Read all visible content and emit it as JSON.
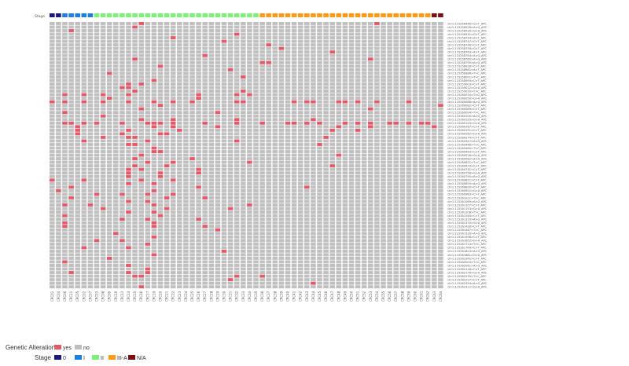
{
  "colors": {
    "yes": "#e05a6a",
    "no": "#c0bfbf",
    "stage_0": "#1a1a7a",
    "stage_I": "#1e7fdc",
    "stage_II": "#7ef07a",
    "stage_IIIA": "#ff9a1a",
    "stage_NA": "#7a0f14"
  },
  "chart_data": {
    "type": "heatmap",
    "stage_track_label": "Stage",
    "samples": [
      "CRC01",
      "CRC04",
      "CRC06",
      "CRC11",
      "CRC05",
      "CRC02",
      "CRC07",
      "CRC03",
      "CRC08",
      "CRC09",
      "CRC10",
      "CRC13",
      "CRC14",
      "CRC15",
      "CRC16",
      "CRC17",
      "CRC19",
      "CRC20",
      "CRC21",
      "CRC22",
      "CRC23",
      "CRC24",
      "CRC25",
      "CRC26",
      "CRC27",
      "CRC28",
      "CRC29",
      "CRC30",
      "CRC31",
      "CRC32",
      "CRC33",
      "CRC34",
      "CRC35",
      "CRC36",
      "CRC37",
      "CRC38",
      "CRC39",
      "CRC40",
      "CRC41",
      "CRC42",
      "CRC43",
      "CRC44",
      "CRC45",
      "CRC46",
      "CRC47",
      "CRC48",
      "CRC49",
      "CRC50",
      "CRC51",
      "CRC52",
      "CRC53",
      "CRC54",
      "CRC55",
      "CRC56",
      "CRC57",
      "CRC58",
      "CRC59",
      "CRC60",
      "CRC61",
      "CRC62",
      "CRC63",
      "CRC64"
    ],
    "stages": [
      "0",
      "0",
      "I",
      "I",
      "I",
      "I",
      "I",
      "II",
      "II",
      "II",
      "II",
      "II",
      "II",
      "II",
      "II",
      "II",
      "II",
      "II",
      "II",
      "II",
      "II",
      "II",
      "II",
      "II",
      "II",
      "II",
      "II",
      "II",
      "II",
      "II",
      "II",
      "II",
      "II",
      "III-A",
      "III-A",
      "III-A",
      "III-A",
      "III-A",
      "III-A",
      "III-A",
      "III-A",
      "III-A",
      "III-A",
      "III-A",
      "III-A",
      "III-A",
      "III-A",
      "III-A",
      "III-A",
      "III-A",
      "III-A",
      "III-A",
      "III-A",
      "III-A",
      "III-A",
      "III-A",
      "III-A",
      "III-A",
      "III-A",
      "III-A",
      "N/A",
      "N/A"
    ],
    "mutations": [
      "chr1:115256446>G>T_APC",
      "chr1:115256528>A>G_APC",
      "chr1:115256530>G>A_APC",
      "chr1:115256531>G>T_APC",
      "chr1:115258744>A>T_APC",
      "chr1:115258747>C>T_APC",
      "chr1:115258748>C>T_APC",
      "chr1:115258756>G>T_APC",
      "chr1:115258763>A>T_APC",
      "chr1:115258764>A>G_APC",
      "chr1:115258765>A>G_APC",
      "chr1:115258790>A>G_APC",
      "chr1:115258918>C>T_APC",
      "chr1:115258982>A>T_APC",
      "chr1:115258986>T>C_APC",
      "chr1:115258991>T>C_APC",
      "chr1:115258993>C>T_APC",
      "chr1:115259003>C>T_APC",
      "chr1:115259012>G>A_APC",
      "chr1:115259033>T>C_APC",
      "chr1:115260034>T>G_APC",
      "chr1:115260050>G>A_APC",
      "chr1:115260068>A>G_APC",
      "chr1:115260082>C>T_APC",
      "chr1:115260089>C>T_APC",
      "chr1:115260094>T>C_APC",
      "chr1:115260100>A>G_APC",
      "chr1:115260129>G>A_APC",
      "chr1:115260143>G>A_APC",
      "chr1:115260167>C>T_APC",
      "chr1:115260191>C>T_APC",
      "chr1:115260262>G>A_APC",
      "chr1:115260274>C>T_APC",
      "chr1:115260347>A>G_APC",
      "chr1:115260448>T>C_APC",
      "chr1:115260460>T>C_APC",
      "chr1:115260483>C>T_APC",
      "chr1:115260526>G>A_APC",
      "chr1:115260562>A>G_APC",
      "chr1:115260621>T>C_APC",
      "chr1:115260674>C>T_APC",
      "chr1:115260731>C>T_APC",
      "chr1:115260756>G>A_APC",
      "chr1:115260795>A>G_APC",
      "chr1:115260821>C>T_APC",
      "chr1:115260859>A>G_APC",
      "chr1:115260890>C>T_APC",
      "chr1:115260952>G>A_APC",
      "chr1:115260983>C>T_APC",
      "chr1:115261021>T>C_APC",
      "chr1:115261069>A>G_APC",
      "chr1:115261107>C>T_APC",
      "chr1:115261153>G>A_APC",
      "chr1:115261208>T>C_APC",
      "chr1:115261264>C>T_APC",
      "chr1:115261319>A>G_APC",
      "chr1:115261370>G>A_APC",
      "chr1:115261428>C>T_APC",
      "chr1:115261487>T>C_APC",
      "chr1:115261539>A>G_APC",
      "chr1:115261598>C>T_APC",
      "chr1:115261652>G>A_APC",
      "chr1:115261714>T>C_APC",
      "chr1:115261769>C>T_APC",
      "chr1:115261823>A>G_APC",
      "chr1:115261881>G>A_APC",
      "chr1:115261942>C>T_APC",
      "chr1:115262003>T>C_APC",
      "chr1:115262061>A>G_APC",
      "chr1:115262118>C>T_APC",
      "chr1:115262176>G>A_APC",
      "chr1:115262235>T>C_APC",
      "chr1:115262297>C>T_APC",
      "chr1:115262354>A>G_APC",
      "chr1:115262412>G>A_APC"
    ],
    "mutated": [
      [
        0,
        14
      ],
      [
        0,
        51
      ],
      [
        1,
        13
      ],
      [
        2,
        3
      ],
      [
        3,
        29
      ],
      [
        4,
        19
      ],
      [
        5,
        27
      ],
      [
        6,
        34
      ],
      [
        7,
        36
      ],
      [
        8,
        44
      ],
      [
        9,
        24
      ],
      [
        10,
        13
      ],
      [
        10,
        50
      ],
      [
        11,
        34
      ],
      [
        11,
        33
      ],
      [
        12,
        17
      ],
      [
        13,
        28
      ],
      [
        14,
        9
      ],
      [
        15,
        30
      ],
      [
        16,
        16
      ],
      [
        17,
        12
      ],
      [
        17,
        14
      ],
      [
        18,
        11
      ],
      [
        18,
        12
      ],
      [
        19,
        13
      ],
      [
        19,
        30
      ],
      [
        20,
        2
      ],
      [
        20,
        5
      ],
      [
        20,
        8
      ],
      [
        20,
        12
      ],
      [
        20,
        23
      ],
      [
        20,
        29
      ],
      [
        20,
        31
      ],
      [
        21,
        9
      ],
      [
        21,
        23
      ],
      [
        22,
        0
      ],
      [
        22,
        2
      ],
      [
        22,
        5
      ],
      [
        22,
        8
      ],
      [
        22,
        12
      ],
      [
        22,
        16
      ],
      [
        22,
        19
      ],
      [
        22,
        22
      ],
      [
        22,
        29
      ],
      [
        22,
        30
      ],
      [
        22,
        38
      ],
      [
        22,
        40
      ],
      [
        22,
        41
      ],
      [
        22,
        45
      ],
      [
        22,
        46
      ],
      [
        22,
        48
      ],
      [
        22,
        51
      ],
      [
        22,
        56
      ],
      [
        23,
        17
      ],
      [
        23,
        61
      ],
      [
        24,
        14
      ],
      [
        24,
        50
      ],
      [
        25,
        2
      ],
      [
        25,
        26
      ],
      [
        26,
        8
      ],
      [
        27,
        14
      ],
      [
        27,
        19
      ],
      [
        27,
        29
      ],
      [
        27,
        41
      ],
      [
        28,
        2
      ],
      [
        28,
        3
      ],
      [
        28,
        5
      ],
      [
        28,
        7
      ],
      [
        28,
        11
      ],
      [
        28,
        15
      ],
      [
        28,
        16
      ],
      [
        28,
        17
      ],
      [
        28,
        19
      ],
      [
        28,
        24
      ],
      [
        28,
        29
      ],
      [
        28,
        33
      ],
      [
        28,
        37
      ],
      [
        28,
        38
      ],
      [
        28,
        40
      ],
      [
        28,
        42
      ],
      [
        28,
        46
      ],
      [
        28,
        48
      ],
      [
        28,
        50
      ],
      [
        28,
        53
      ],
      [
        28,
        54
      ],
      [
        28,
        56
      ],
      [
        28,
        58
      ],
      [
        28,
        59
      ],
      [
        29,
        4
      ],
      [
        29,
        16
      ],
      [
        29,
        19
      ],
      [
        29,
        26
      ],
      [
        29,
        45
      ],
      [
        29,
        50
      ],
      [
        29,
        60
      ],
      [
        30,
        4
      ],
      [
        30,
        12
      ],
      [
        30,
        20
      ],
      [
        30,
        44
      ],
      [
        30,
        48
      ],
      [
        31,
        4
      ],
      [
        31,
        11
      ],
      [
        31,
        17
      ],
      [
        31,
        18
      ],
      [
        32,
        8
      ],
      [
        32,
        12
      ],
      [
        32,
        13
      ],
      [
        32,
        43
      ],
      [
        33,
        5
      ],
      [
        33,
        15
      ],
      [
        33,
        29
      ],
      [
        34,
        12
      ],
      [
        34,
        13
      ],
      [
        34,
        42
      ],
      [
        35,
        16
      ],
      [
        36,
        16
      ],
      [
        36,
        17
      ],
      [
        37,
        14
      ],
      [
        37,
        45
      ],
      [
        38,
        13
      ],
      [
        38,
        22
      ],
      [
        39,
        15
      ],
      [
        39,
        19
      ],
      [
        39,
        31
      ],
      [
        40,
        13
      ],
      [
        40,
        18
      ],
      [
        40,
        44
      ],
      [
        41,
        12
      ],
      [
        41,
        14
      ],
      [
        41,
        23
      ],
      [
        42,
        12
      ],
      [
        42,
        17
      ],
      [
        42,
        23
      ],
      [
        43,
        12
      ],
      [
        43,
        17
      ],
      [
        44,
        0
      ],
      [
        44,
        5
      ],
      [
        44,
        14
      ],
      [
        44,
        19
      ],
      [
        45,
        12
      ],
      [
        45,
        16
      ],
      [
        46,
        3
      ],
      [
        46,
        23
      ],
      [
        46,
        40
      ],
      [
        47,
        1
      ],
      [
        47,
        16
      ],
      [
        48,
        7
      ],
      [
        48,
        11
      ],
      [
        48,
        15
      ],
      [
        48,
        19
      ],
      [
        49,
        3
      ],
      [
        49,
        18
      ],
      [
        49,
        24
      ],
      [
        50,
        12
      ],
      [
        50,
        15
      ],
      [
        51,
        2
      ],
      [
        51,
        6
      ],
      [
        51,
        16
      ],
      [
        51,
        31
      ],
      [
        52,
        8
      ],
      [
        52,
        18
      ],
      [
        52,
        28
      ],
      [
        53,
        12
      ],
      [
        53,
        16
      ],
      [
        54,
        2
      ],
      [
        54,
        17
      ],
      [
        55,
        11
      ],
      [
        55,
        15
      ],
      [
        55,
        23
      ],
      [
        56,
        2
      ],
      [
        56,
        16
      ],
      [
        57,
        2
      ],
      [
        57,
        16
      ],
      [
        57,
        24
      ],
      [
        58,
        26
      ],
      [
        59,
        10
      ],
      [
        60,
        16
      ],
      [
        61,
        7
      ],
      [
        61,
        11
      ],
      [
        62,
        15
      ],
      [
        63,
        5
      ],
      [
        63,
        12
      ],
      [
        64,
        27
      ],
      [
        65,
        16
      ],
      [
        66,
        9
      ],
      [
        67,
        2
      ],
      [
        68,
        12
      ],
      [
        69,
        15
      ],
      [
        70,
        3
      ],
      [
        70,
        12
      ],
      [
        70,
        15
      ],
      [
        71,
        13
      ],
      [
        71,
        14
      ],
      [
        71,
        29
      ],
      [
        71,
        33
      ],
      [
        72,
        28
      ],
      [
        73,
        41
      ],
      [
        74,
        14
      ]
    ],
    "legend": {
      "alteration_title": "Genetic Alteration",
      "alteration_items": [
        "yes",
        "no"
      ],
      "stage_title": "Stage",
      "stage_items": [
        "0",
        "I",
        "II",
        "III-A",
        "N/A"
      ]
    }
  }
}
